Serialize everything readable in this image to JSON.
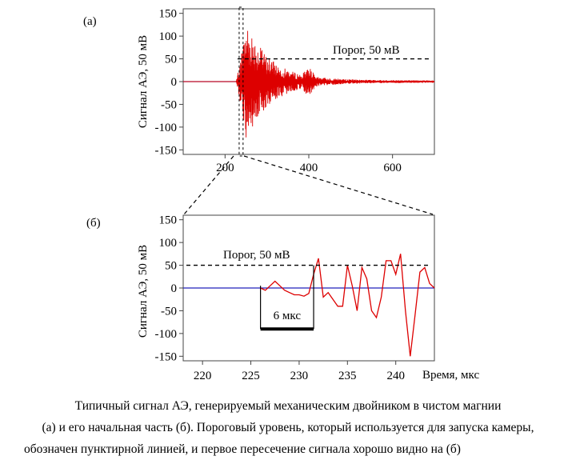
{
  "chart_data": [
    {
      "type": "line",
      "panel_label": "(а)",
      "ylabel": "Сигнал АЭ, 50 мВ",
      "xlabel": "",
      "xlim": [
        100,
        700
      ],
      "ylim": [
        -160,
        160
      ],
      "xticks": [
        200,
        400,
        600
      ],
      "yticks": [
        150,
        100,
        50,
        0,
        -50,
        -100,
        -150
      ],
      "threshold": {
        "value": 50,
        "label": "Порог, 50 мВ"
      },
      "zoom_window": [
        226,
        243
      ],
      "series": [
        {
          "signal_start": 226,
          "peak_time": 250,
          "amplitude": 130,
          "decay_end": 700,
          "color": "#dd0000"
        }
      ],
      "baseline_color": "#2222bb"
    },
    {
      "type": "line",
      "panel_label": "(б)",
      "ylabel": "Сигнал АЭ, 50 мВ",
      "xlabel": "Время, мкс",
      "xlim": [
        218,
        244
      ],
      "ylim": [
        -160,
        160
      ],
      "xticks": [
        220,
        225,
        230,
        235,
        240
      ],
      "yticks": [
        150,
        100,
        50,
        0,
        -50,
        -100,
        -150
      ],
      "threshold": {
        "value": 50,
        "label": "Порог, 50 мВ"
      },
      "annotation": {
        "label": "6 мкс",
        "from": 226,
        "to": 231.5
      },
      "series": [
        {
          "color": "#dd0000",
          "x": [
            226,
            226.5,
            227,
            227.5,
            228,
            228.5,
            229,
            229.5,
            230,
            230.5,
            231,
            231.5,
            232,
            232.5,
            233,
            233.5,
            234,
            234.5,
            235,
            235.5,
            236,
            236.5,
            237,
            237.5,
            238,
            238.5,
            239,
            239.5,
            240,
            240.5,
            241,
            241.5,
            242,
            242.5,
            243,
            243.5,
            244
          ],
          "y": [
            0,
            -5,
            5,
            15,
            5,
            -5,
            -10,
            -15,
            -15,
            -18,
            -12,
            30,
            65,
            -20,
            -10,
            -25,
            -40,
            -40,
            50,
            5,
            -50,
            45,
            20,
            -50,
            -65,
            -20,
            60,
            60,
            30,
            75,
            -50,
            -150,
            -60,
            35,
            45,
            10,
            0
          ]
        }
      ],
      "baseline_color": "#2222bb"
    }
  ],
  "caption": {
    "line1": "Типичный сигнал АЭ, генерируемый механическим двойником в чистом магнии",
    "line2": "(а) и его начальная часть (б). Пороговый уровень, который используется для запуска камеры,",
    "line3": "обозначен пунктирной линией, и первое пересечение сигнала хорошо видно на (б)"
  }
}
